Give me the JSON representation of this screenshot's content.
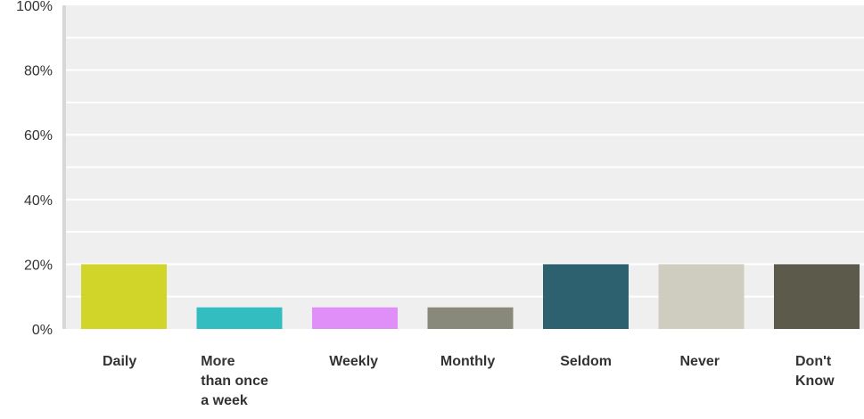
{
  "chart_data": {
    "type": "bar",
    "categories": [
      [
        "Daily"
      ],
      [
        "More",
        "than once",
        "a week"
      ],
      [
        "Weekly"
      ],
      [
        "Monthly"
      ],
      [
        "Seldom"
      ],
      [
        "Never"
      ],
      [
        "Don't",
        "Know"
      ]
    ],
    "values": [
      20,
      6.67,
      6.67,
      6.67,
      20,
      20,
      20
    ],
    "colors": [
      "#d1d52a",
      "#33bdc0",
      "#e18ff8",
      "#88897b",
      "#2d616f",
      "#cfcdbf",
      "#5c5a4a"
    ],
    "y_ticks": [
      "0%",
      "20%",
      "40%",
      "60%",
      "80%",
      "100%"
    ],
    "ylim": [
      0,
      100
    ],
    "grid": true,
    "plot_background": "#efefef",
    "grid_color": "#ffffff",
    "axis_color": "#d7d7d7",
    "title": "",
    "xlabel": "",
    "ylabel": ""
  }
}
